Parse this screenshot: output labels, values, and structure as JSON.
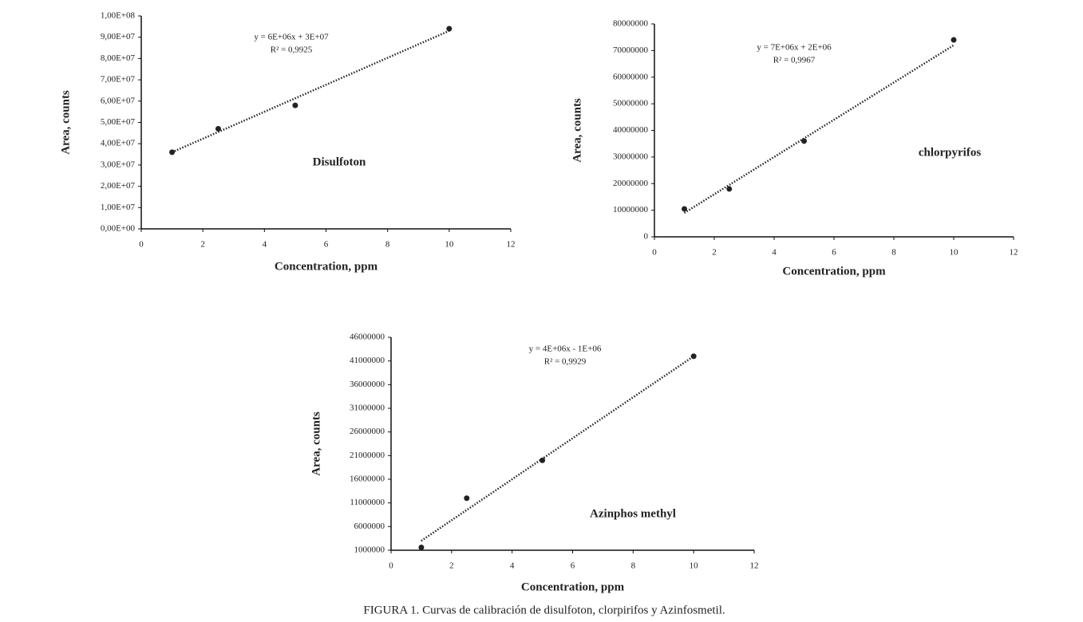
{
  "chart_data": [
    {
      "type": "scatter",
      "label": "Disulfoton",
      "equation": [
        "y = 6E+06x + 3E+07",
        "R² = 0,9925"
      ],
      "x_label": "Concentration, ppm",
      "y_label": "Area, counts",
      "x": [
        1,
        2.5,
        5,
        10
      ],
      "values": [
        36000000,
        47000000,
        58000000,
        94000000
      ],
      "color": "#222222",
      "trendline": {
        "x": [
          1,
          10
        ],
        "values": [
          36000000,
          93000000
        ]
      },
      "xlim": [
        0,
        12
      ],
      "xticks": [
        0,
        2,
        4,
        6,
        8,
        10,
        12
      ],
      "ylim": [
        0,
        100000000
      ],
      "yticks": [
        {
          "value": 0,
          "label": "0,00E+00"
        },
        {
          "value": 10000000,
          "label": "1,00E+07"
        },
        {
          "value": 20000000,
          "label": "2,00E+07"
        },
        {
          "value": 30000000,
          "label": "3,00E+07"
        },
        {
          "value": 40000000,
          "label": "4,00E+07"
        },
        {
          "value": 50000000,
          "label": "5,00E+07"
        },
        {
          "value": 60000000,
          "label": "6,00E+07"
        },
        {
          "value": 70000000,
          "label": "7,00E+07"
        },
        {
          "value": 80000000,
          "label": "8,00E+07"
        },
        {
          "value": 90000000,
          "label": "9,00E+07"
        },
        {
          "value": 100000000,
          "label": "1,00E+08"
        }
      ],
      "grid": false
    },
    {
      "type": "scatter",
      "label": "chlorpyrifos",
      "equation": [
        "y = 7E+06x + 2E+06",
        "R² = 0,9967"
      ],
      "x_label": "Concentration,  ppm",
      "y_label": "Area, counts",
      "x": [
        1,
        2.5,
        5,
        10
      ],
      "values": [
        10500000,
        18000000,
        36000000,
        74000000
      ],
      "color": "#222222",
      "trendline": {
        "x": [
          1,
          10
        ],
        "values": [
          9000000,
          72000000
        ]
      },
      "xlim": [
        0,
        12
      ],
      "xticks": [
        0,
        2,
        4,
        6,
        8,
        10,
        12
      ],
      "ylim": [
        0,
        80000000
      ],
      "yticks": [
        0,
        10000000,
        20000000,
        30000000,
        40000000,
        50000000,
        60000000,
        70000000,
        80000000
      ],
      "grid": false
    },
    {
      "type": "scatter",
      "label": "Azinphos methyl",
      "equation": [
        "y = 4E+06x - 1E+06",
        "R² = 0,9929"
      ],
      "x_label": "Concentration, ppm",
      "y_label": "Area, counts",
      "x": [
        1,
        2.5,
        5,
        10
      ],
      "values": [
        1600000,
        12000000,
        20000000,
        42000000
      ],
      "color": "#222222",
      "trendline": {
        "x": [
          1,
          10
        ],
        "values": [
          3000000,
          42000000
        ]
      },
      "xlim": [
        0,
        12
      ],
      "xticks": [
        0,
        2,
        4,
        6,
        8,
        10,
        12
      ],
      "ylim": [
        1000000,
        46000000
      ],
      "yticks": [
        1000000,
        6000000,
        11000000,
        16000000,
        21000000,
        26000000,
        31000000,
        36000000,
        41000000,
        46000000
      ],
      "grid": false
    }
  ],
  "caption": "FIGURA 1. Curvas de calibración de disulfoton, clorpirifos y Azinfosmetil."
}
